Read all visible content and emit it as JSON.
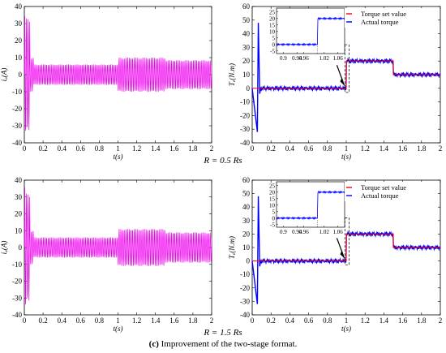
{
  "captions": {
    "top_condition": "R = 0.5 Rs",
    "bottom_condition": "R = 1.5 Rs",
    "figure_label": "(c)",
    "figure_text": " Improvement of the two-stage format."
  },
  "colors": {
    "current": "#ee00ee",
    "torque_set": "#ff0000",
    "torque_actual": "#0000ff",
    "axis": "#000000"
  },
  "chart_data": [
    {
      "id": "current_r05",
      "type": "line",
      "title": "",
      "xlabel": "t(s)",
      "ylabel": "iₐ(A)",
      "xlim": [
        0,
        2
      ],
      "ylim": [
        -40,
        40
      ],
      "xticks": [
        "0",
        "0.2",
        "0.4",
        "0.6",
        "0.8",
        "1",
        "1.2",
        "1.4",
        "1.6",
        "1.8",
        "2"
      ],
      "yticks": [
        "-40",
        "-30",
        "-20",
        "-10",
        "0",
        "10",
        "20",
        "30",
        "40"
      ],
      "series": [
        {
          "role": "current",
          "envelope": [
            {
              "t_start": 0.0,
              "t_end": 0.02,
              "amplitude": 35
            },
            {
              "t_start": 0.02,
              "t_end": 0.06,
              "amplitude": 33
            },
            {
              "t_start": 0.06,
              "t_end": 0.1,
              "amplitude": 10
            },
            {
              "t_start": 0.1,
              "t_end": 1.0,
              "amplitude": 6
            },
            {
              "t_start": 1.0,
              "t_end": 1.5,
              "amplitude": 10
            },
            {
              "t_start": 1.5,
              "t_end": 2.0,
              "amplitude": 8.5
            }
          ]
        }
      ]
    },
    {
      "id": "torque_r05",
      "type": "line",
      "title": "",
      "xlabel": "t(s)",
      "ylabel": "Tₑ(N.m)",
      "xlim": [
        0,
        2
      ],
      "ylim": [
        -40,
        60
      ],
      "xticks": [
        "0",
        "0.2",
        "0.4",
        "0.6",
        "0.8",
        "1",
        "1.2",
        "1.4",
        "1.6",
        "1.8",
        "2"
      ],
      "yticks": [
        "-40",
        "-30",
        "-20",
        "-10",
        "0",
        "10",
        "20",
        "30",
        "40",
        "50",
        "60"
      ],
      "legend": {
        "position": "top-right",
        "entries": [
          "Torque set value",
          "Actual torque"
        ]
      },
      "series": [
        {
          "name": "Torque set value",
          "x": [
            0,
            1,
            1,
            1.5,
            1.5,
            2
          ],
          "y": [
            0,
            0,
            20,
            20,
            10,
            10
          ]
        },
        {
          "name": "Actual torque",
          "x": [
            0,
            1,
            1,
            1.5,
            1.5,
            2
          ],
          "y": [
            0,
            0,
            20,
            20,
            10,
            10
          ]
        }
      ],
      "inset": {
        "xticks": [
          "0.9",
          "0.94",
          "0.96",
          "1.02",
          "1.06"
        ],
        "yticks": [
          "25",
          "20",
          "15",
          "10",
          "5",
          "0",
          "-5"
        ],
        "xlim": [
          0.88,
          1.08
        ],
        "ylim": [
          -7,
          28
        ]
      }
    },
    {
      "id": "current_r15",
      "type": "line",
      "title": "",
      "xlabel": "t(s)",
      "ylabel": "iₐ(A)",
      "xlim": [
        0,
        2
      ],
      "ylim": [
        -40,
        40
      ],
      "xticks": [
        "0",
        "0.2",
        "0.4",
        "0.6",
        "0.8",
        "1",
        "1.2",
        "1.4",
        "1.6",
        "1.8",
        "2"
      ],
      "yticks": [
        "-40",
        "-30",
        "-20",
        "-10",
        "0",
        "10",
        "20",
        "30",
        "40"
      ],
      "series": [
        {
          "role": "current",
          "envelope": [
            {
              "t_start": 0.0,
              "t_end": 0.02,
              "amplitude": 36
            },
            {
              "t_start": 0.02,
              "t_end": 0.06,
              "amplitude": 32
            },
            {
              "t_start": 0.06,
              "t_end": 0.1,
              "amplitude": 10
            },
            {
              "t_start": 0.1,
              "t_end": 1.0,
              "amplitude": 6
            },
            {
              "t_start": 1.0,
              "t_end": 1.5,
              "amplitude": 11
            },
            {
              "t_start": 1.5,
              "t_end": 2.0,
              "amplitude": 9
            }
          ]
        }
      ]
    },
    {
      "id": "torque_r15",
      "type": "line",
      "title": "",
      "xlabel": "t(s)",
      "ylabel": "Tₑ(N.m)",
      "xlim": [
        0,
        2
      ],
      "ylim": [
        -40,
        60
      ],
      "xticks": [
        "0",
        "0.2",
        "0.4",
        "0.6",
        "0.8",
        "1",
        "1.2",
        "1.4",
        "1.6",
        "1.8",
        "2"
      ],
      "yticks": [
        "-40",
        "-30",
        "-20",
        "-10",
        "0",
        "10",
        "20",
        "30",
        "40",
        "50",
        "60"
      ],
      "legend": {
        "position": "top-right",
        "entries": [
          "Torque set value",
          "Actual torque"
        ]
      },
      "series": [
        {
          "name": "Torque set value",
          "x": [
            0,
            1,
            1,
            1.5,
            1.5,
            2
          ],
          "y": [
            0,
            0,
            20,
            20,
            10,
            10
          ]
        },
        {
          "name": "Actual torque",
          "x": [
            0,
            1,
            1,
            1.5,
            1.5,
            2
          ],
          "y": [
            0,
            0,
            20,
            20,
            10,
            10
          ]
        }
      ],
      "inset": {
        "xticks": [
          "0.9",
          "0.94",
          "0.96",
          "1.02",
          "1.06"
        ],
        "yticks": [
          "25",
          "20",
          "15",
          "10",
          "5",
          "0",
          "-5"
        ],
        "xlim": [
          0.88,
          1.08
        ],
        "ylim": [
          -7,
          28
        ]
      }
    }
  ]
}
